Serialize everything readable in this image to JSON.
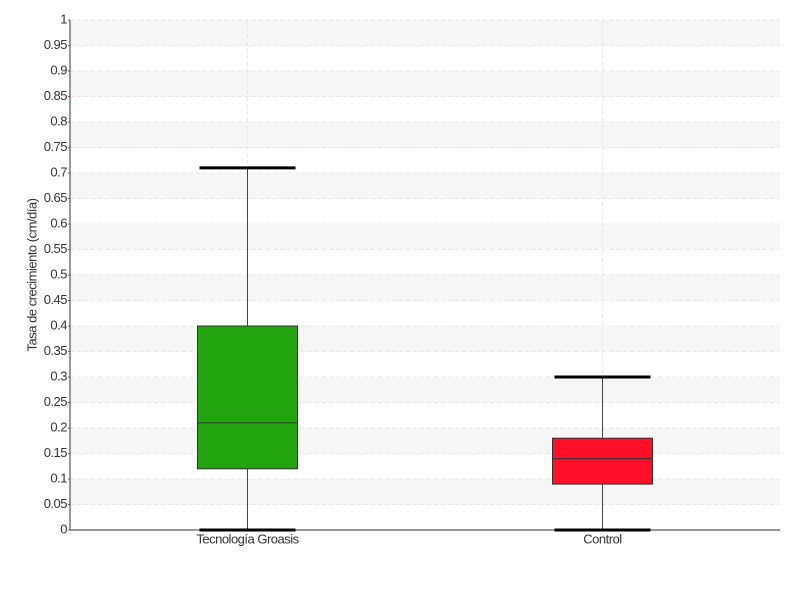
{
  "chart_data": {
    "type": "box",
    "y_label": "Tasa de crecimiento (cm/día)",
    "categories": [
      "Tecnología Groasis",
      "Control"
    ],
    "boxes": [
      {
        "min": 0,
        "q1": 0.12,
        "median": 0.21,
        "q3": 0.4,
        "max": 0.71,
        "color": "#22a40e"
      },
      {
        "min": 0,
        "q1": 0.09,
        "median": 0.14,
        "q3": 0.18,
        "max": 0.3,
        "color": "#ff0f28"
      }
    ],
    "ylim": [
      0,
      1
    ],
    "yticks": [
      0,
      0.05,
      0.1,
      0.15,
      0.2,
      0.25,
      0.3,
      0.35,
      0.4,
      0.45,
      0.5,
      0.55,
      0.6,
      0.65,
      0.7,
      0.75,
      0.8,
      0.85,
      0.9,
      0.95,
      1
    ],
    "grid": true
  }
}
